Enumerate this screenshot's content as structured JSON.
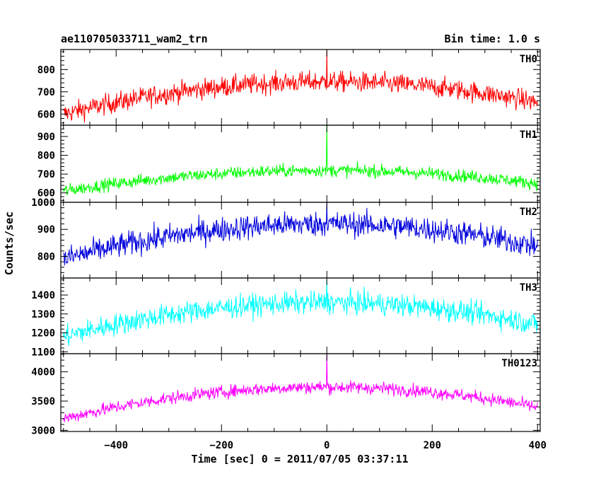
{
  "chart_data": {
    "type": "line",
    "title": "ae110705033711_wam2_trn",
    "bin_time_label": "Bin time: 1.0 s",
    "xlabel": "Time [sec] 0 = 2011/07/05 03:37:11",
    "ylabel": "Counts/sec",
    "xlim": [
      -505,
      405
    ],
    "x_ticks": [
      -400,
      -200,
      0,
      200,
      400
    ],
    "x_tick_labels": [
      "−400",
      "−200",
      "0",
      "200",
      "400"
    ],
    "bin_time_s": 1.0,
    "x_start": -500,
    "x_end": 400,
    "panels": [
      {
        "name": "TH0",
        "color": "#ff0000",
        "ylim": [
          550,
          890
        ],
        "y_ticks": [
          600,
          700,
          800
        ],
        "y_tick_labels": [
          "600",
          "700",
          "800"
        ],
        "edge_level": 600,
        "center_level": 745,
        "noise_amplitude": 55,
        "spike_peak": 890
      },
      {
        "name": "TH1",
        "color": "#00ff00",
        "ylim": [
          550,
          960
        ],
        "y_ticks": [
          600,
          700,
          800,
          900
        ],
        "y_tick_labels": [
          "600",
          "700",
          "800",
          "900"
        ],
        "edge_level": 610,
        "center_level": 720,
        "noise_amplitude": 40,
        "spike_peak": 960
      },
      {
        "name": "TH2",
        "color": "#0000dd",
        "ylim": [
          720,
          1000
        ],
        "y_ticks": [
          800,
          900,
          1000
        ],
        "y_tick_labels": [
          "800",
          "900",
          "1000"
        ],
        "edge_level": 790,
        "center_level": 920,
        "noise_amplitude": 55,
        "spike_peak": 1000
      },
      {
        "name": "TH3",
        "color": "#00ffff",
        "ylim": [
          1090,
          1490
        ],
        "y_ticks": [
          1100,
          1200,
          1300,
          1400
        ],
        "y_tick_labels": [
          "1100",
          "1200",
          "1300",
          "1400"
        ],
        "edge_level": 1180,
        "center_level": 1360,
        "noise_amplitude": 70,
        "spike_peak": 1480
      },
      {
        "name": "TH0123",
        "color": "#ff00ff",
        "ylim": [
          2980,
          4310
        ],
        "y_ticks": [
          3000,
          3500,
          4000
        ],
        "y_tick_labels": [
          "3000",
          "3500",
          "4000"
        ],
        "edge_level": 3200,
        "center_level": 3740,
        "noise_amplitude": 130,
        "spike_peak": 4310
      }
    ]
  }
}
